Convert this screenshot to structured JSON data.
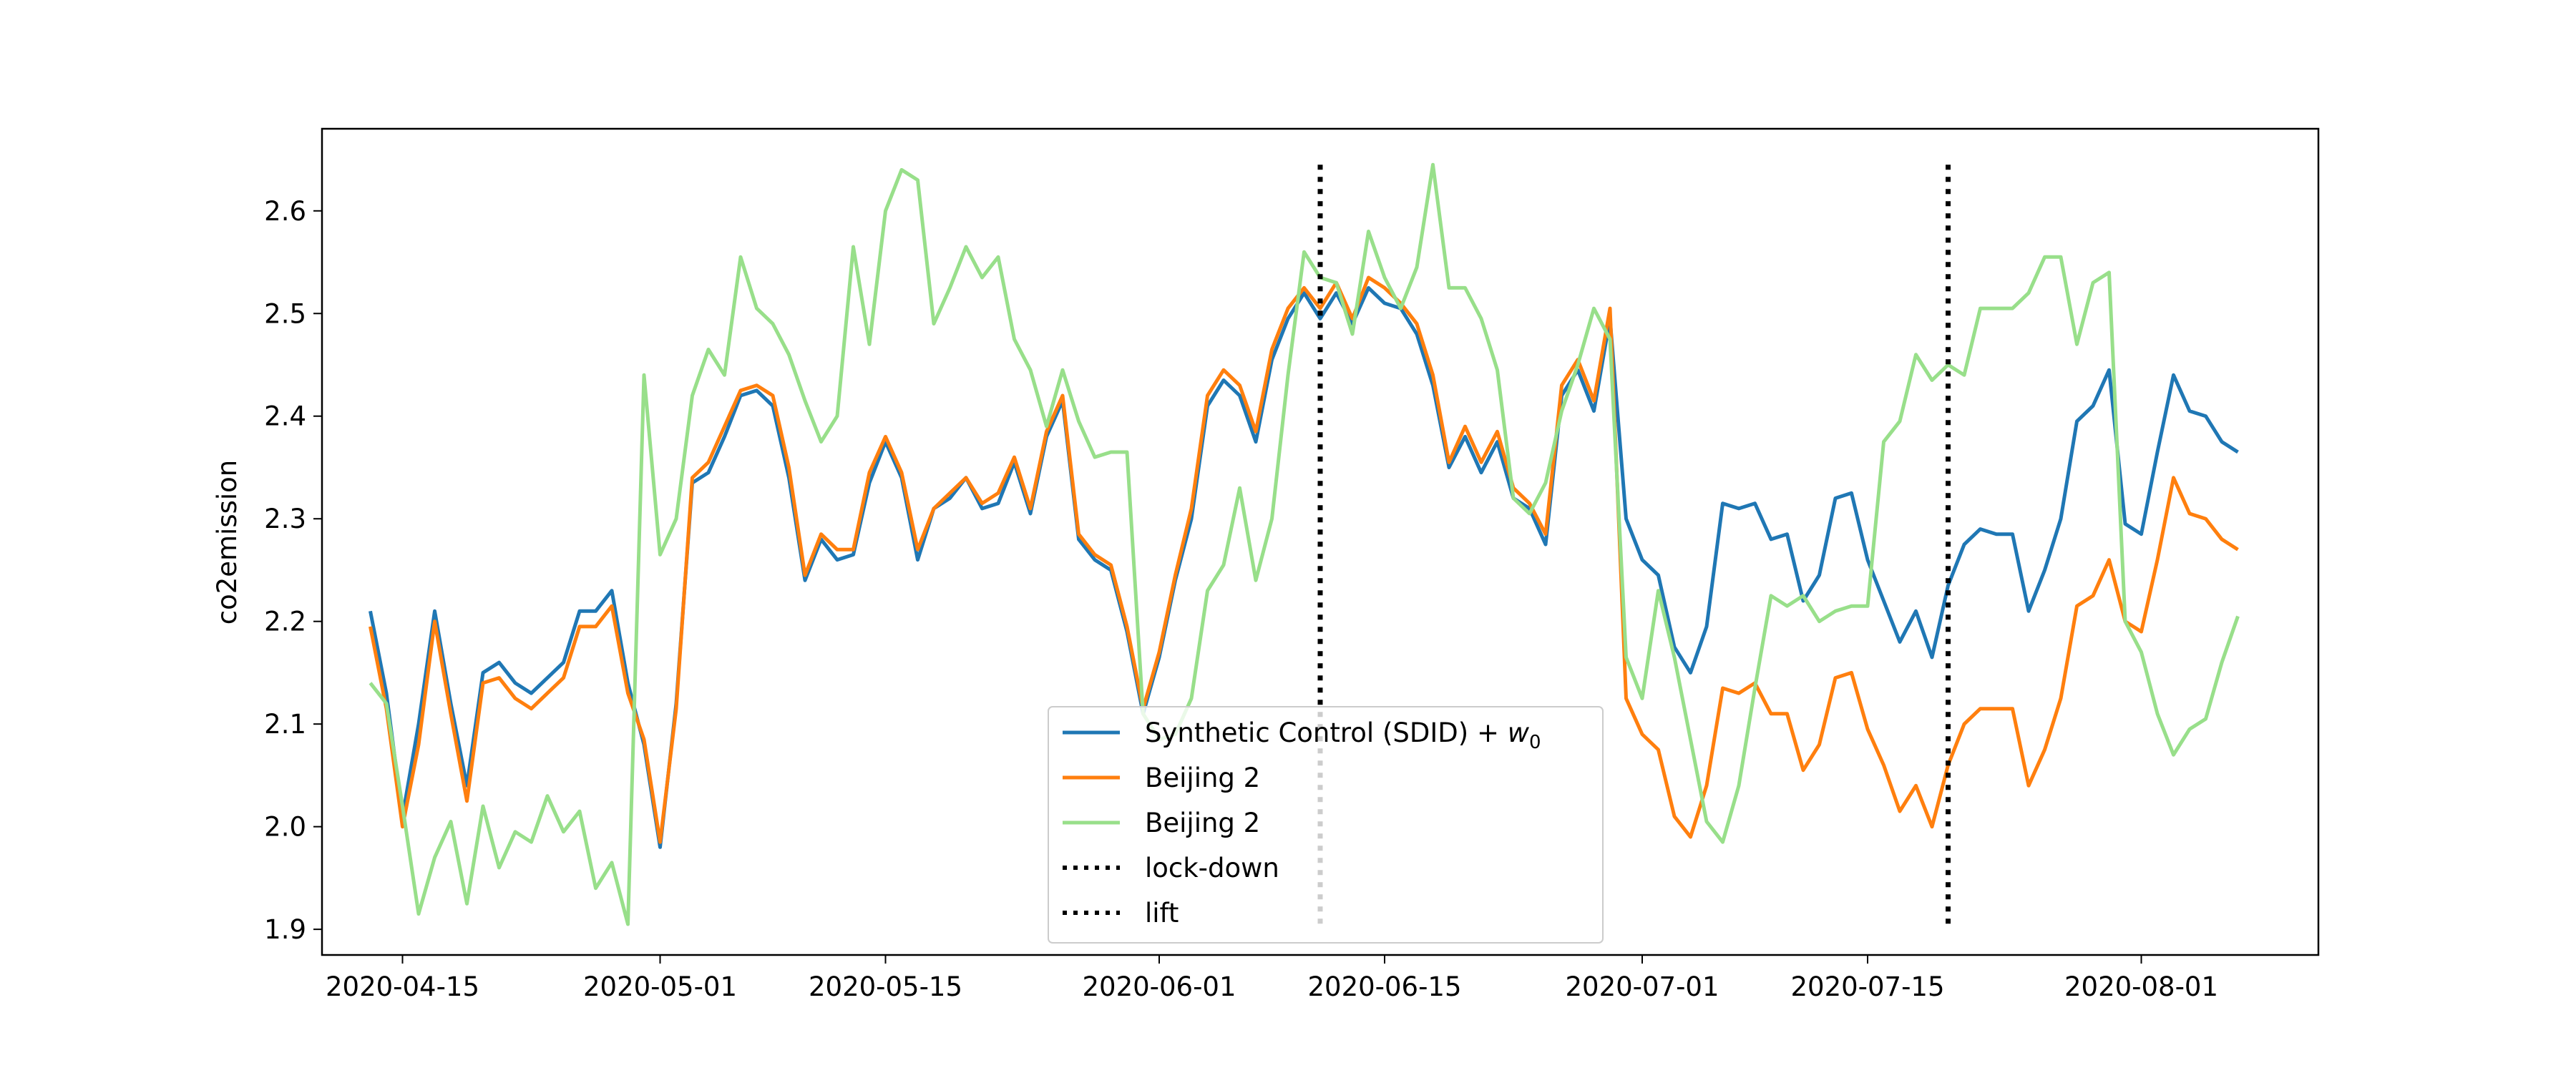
{
  "chart_data": {
    "type": "line",
    "title": "",
    "xlabel": "",
    "ylabel": "co2emission",
    "ylim": [
      1.875,
      2.68
    ],
    "xlim": [
      "2020-04-10",
      "2020-08-12"
    ],
    "yticks": [
      1.9,
      2.0,
      2.1,
      2.2,
      2.3,
      2.4,
      2.5,
      2.6
    ],
    "xticks": [
      "2020-04-15",
      "2020-05-01",
      "2020-05-15",
      "2020-06-01",
      "2020-06-15",
      "2020-07-01",
      "2020-07-15",
      "2020-08-01"
    ],
    "x_start": "2020-04-13",
    "grid": false,
    "legend_position": "lower center",
    "legend": [
      {
        "label": "Synthetic Control (SDID) + ",
        "math": "w",
        "sub": "0",
        "color": "#1f77b4",
        "style": "solid"
      },
      {
        "label": "Beijing 2",
        "color": "#ff7f0e",
        "style": "solid"
      },
      {
        "label": "Beijing 2",
        "color": "#98df8a",
        "style": "solid"
      },
      {
        "label": "lock-down",
        "color": "#000000",
        "style": "dotted"
      },
      {
        "label": "lift",
        "color": "#000000",
        "style": "dotted"
      }
    ],
    "vlines": [
      {
        "name": "lock-down",
        "x": "2020-06-11",
        "ymin": 1.905,
        "ymax": 2.645
      },
      {
        "name": "lift",
        "x": "2020-07-20",
        "ymin": 1.905,
        "ymax": 2.645
      }
    ],
    "series": [
      {
        "name": "Synthetic Control (SDID) + w0",
        "color": "#1f77b4",
        "values": [
          2.21,
          2.13,
          2.01,
          2.1,
          2.21,
          2.12,
          2.04,
          2.15,
          2.16,
          2.14,
          2.13,
          2.145,
          2.16,
          2.21,
          2.21,
          2.23,
          2.14,
          2.08,
          1.98,
          2.12,
          2.335,
          2.345,
          2.38,
          2.42,
          2.425,
          2.41,
          2.34,
          2.24,
          2.28,
          2.26,
          2.265,
          2.335,
          2.375,
          2.34,
          2.26,
          2.31,
          2.32,
          2.34,
          2.31,
          2.315,
          2.355,
          2.305,
          2.38,
          2.415,
          2.28,
          2.26,
          2.25,
          2.19,
          2.11,
          2.165,
          2.24,
          2.3,
          2.41,
          2.435,
          2.42,
          2.375,
          2.455,
          2.495,
          2.52,
          2.495,
          2.52,
          2.49,
          2.525,
          2.51,
          2.505,
          2.48,
          2.43,
          2.35,
          2.38,
          2.345,
          2.375,
          2.32,
          2.31,
          2.275,
          2.42,
          2.445,
          2.405,
          2.495,
          2.3,
          2.26,
          2.245,
          2.175,
          2.15,
          2.195,
          2.315,
          2.31,
          2.315,
          2.28,
          2.285,
          2.22,
          2.245,
          2.32,
          2.325,
          2.26,
          2.22,
          2.18,
          2.21,
          2.165,
          2.235,
          2.275,
          2.29,
          2.285,
          2.285,
          2.21,
          2.25,
          2.3,
          2.395,
          2.41,
          2.445,
          2.295,
          2.285,
          2.365,
          2.44,
          2.405,
          2.4,
          2.375,
          2.365
        ]
      },
      {
        "name": "Beijing 2",
        "color": "#ff7f0e",
        "values": [
          2.195,
          2.115,
          2.0,
          2.08,
          2.2,
          2.11,
          2.025,
          2.14,
          2.145,
          2.125,
          2.115,
          2.13,
          2.145,
          2.195,
          2.195,
          2.215,
          2.13,
          2.085,
          1.985,
          2.115,
          2.34,
          2.355,
          2.39,
          2.425,
          2.43,
          2.42,
          2.35,
          2.245,
          2.285,
          2.27,
          2.27,
          2.345,
          2.38,
          2.345,
          2.27,
          2.31,
          2.325,
          2.34,
          2.315,
          2.325,
          2.36,
          2.31,
          2.385,
          2.42,
          2.285,
          2.265,
          2.255,
          2.195,
          2.115,
          2.17,
          2.245,
          2.31,
          2.42,
          2.445,
          2.43,
          2.385,
          2.465,
          2.505,
          2.525,
          2.505,
          2.53,
          2.495,
          2.535,
          2.525,
          2.51,
          2.49,
          2.44,
          2.355,
          2.39,
          2.355,
          2.385,
          2.33,
          2.315,
          2.285,
          2.43,
          2.455,
          2.415,
          2.505,
          2.125,
          2.09,
          2.075,
          2.01,
          1.99,
          2.04,
          2.135,
          2.13,
          2.14,
          2.11,
          2.11,
          2.055,
          2.08,
          2.145,
          2.15,
          2.095,
          2.06,
          2.015,
          2.04,
          2.0,
          2.06,
          2.1,
          2.115,
          2.115,
          2.115,
          2.04,
          2.075,
          2.125,
          2.215,
          2.225,
          2.26,
          2.2,
          2.19,
          2.26,
          2.34,
          2.305,
          2.3,
          2.28,
          2.27
        ]
      },
      {
        "name": "Beijing 2",
        "color": "#98df8a",
        "values": [
          2.14,
          2.12,
          2.02,
          1.915,
          1.97,
          2.005,
          1.925,
          2.02,
          1.96,
          1.995,
          1.985,
          2.03,
          1.995,
          2.015,
          1.94,
          1.965,
          1.905,
          2.44,
          2.265,
          2.3,
          2.42,
          2.465,
          2.44,
          2.555,
          2.505,
          2.49,
          2.46,
          2.415,
          2.375,
          2.4,
          2.565,
          2.47,
          2.6,
          2.64,
          2.63,
          2.49,
          2.525,
          2.565,
          2.535,
          2.555,
          2.475,
          2.445,
          2.39,
          2.445,
          2.395,
          2.36,
          2.365,
          2.365,
          2.11,
          2.085,
          2.09,
          2.125,
          2.23,
          2.255,
          2.33,
          2.24,
          2.3,
          2.44,
          2.56,
          2.535,
          2.53,
          2.48,
          2.58,
          2.535,
          2.505,
          2.545,
          2.645,
          2.525,
          2.525,
          2.495,
          2.445,
          2.32,
          2.305,
          2.335,
          2.405,
          2.45,
          2.505,
          2.475,
          2.165,
          2.125,
          2.23,
          2.165,
          2.085,
          2.005,
          1.985,
          2.04,
          2.135,
          2.225,
          2.215,
          2.225,
          2.2,
          2.21,
          2.215,
          2.215,
          2.375,
          2.395,
          2.46,
          2.435,
          2.45,
          2.44,
          2.505,
          2.505,
          2.505,
          2.52,
          2.555,
          2.555,
          2.47,
          2.53,
          2.54,
          2.2,
          2.17,
          2.11,
          2.07,
          2.095,
          2.105,
          2.16,
          2.205
        ]
      }
    ]
  }
}
